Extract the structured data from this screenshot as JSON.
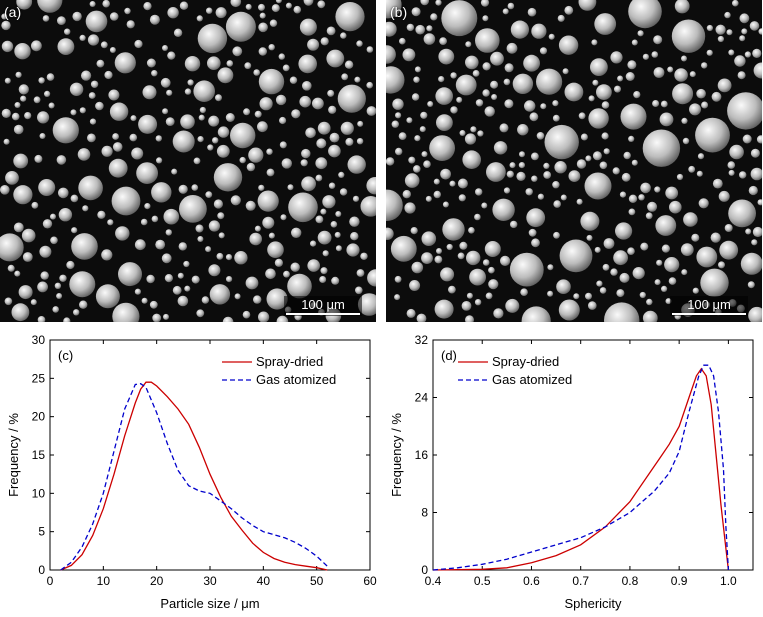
{
  "panels": {
    "a": {
      "label": "(a)",
      "scale_bar": "100 μm"
    },
    "b": {
      "label": "(b)",
      "scale_bar": "100 μm"
    }
  },
  "colors": {
    "spray_dried": "#cc0000",
    "gas_atomized": "#0000cc"
  },
  "chart_data": [
    {
      "type": "line",
      "panel_label": "(c)",
      "xlabel": "Particle size / μm",
      "ylabel": "Frequency / %",
      "xlim": [
        0,
        60
      ],
      "ylim": [
        0,
        30
      ],
      "xticks": [
        0,
        10,
        20,
        30,
        40,
        50,
        60
      ],
      "yticks": [
        0,
        5,
        10,
        15,
        20,
        25,
        30
      ],
      "legend": "top-right",
      "series": [
        {
          "name": "Spray-dried",
          "style": "solid",
          "color": "#cc0000",
          "x": [
            2,
            4,
            6,
            8,
            10,
            12,
            14,
            16,
            17,
            18,
            19,
            20,
            22,
            24,
            26,
            28,
            30,
            32,
            34,
            36,
            38,
            40,
            42,
            44,
            46,
            48,
            50,
            52
          ],
          "y": [
            0,
            0.6,
            2,
            4.5,
            8,
            12.5,
            17.5,
            21.8,
            23.6,
            24.5,
            24.5,
            24,
            22.6,
            21,
            19,
            16,
            12.5,
            9.5,
            7,
            5.2,
            3.5,
            2.3,
            1.5,
            1,
            0.7,
            0.5,
            0.3,
            0
          ]
        },
        {
          "name": "Gas atomized",
          "style": "dashed",
          "color": "#0000cc",
          "x": [
            2,
            4,
            6,
            8,
            10,
            12,
            14,
            16,
            17,
            18,
            20,
            22,
            24,
            26,
            28,
            30,
            32,
            34,
            36,
            38,
            40,
            42,
            44,
            46,
            48,
            50,
            52
          ],
          "y": [
            0,
            1,
            3,
            6,
            10,
            15.5,
            21,
            24.2,
            24.3,
            23.8,
            20.5,
            16.5,
            13,
            11,
            10.3,
            10,
            9,
            8,
            6.8,
            5.8,
            5,
            4.6,
            4.2,
            3.6,
            2.8,
            1.8,
            0.5
          ]
        }
      ]
    },
    {
      "type": "line",
      "panel_label": "(d)",
      "xlabel": "Sphericity",
      "ylabel": "Frequency / %",
      "xlim": [
        0.4,
        1.05
      ],
      "ylim": [
        0,
        32
      ],
      "xticks": [
        0.4,
        0.5,
        0.6,
        0.7,
        0.8,
        0.9,
        1.0
      ],
      "xtick_labels": [
        "0.4",
        "0.5",
        "0.6",
        "0.7",
        "0.8",
        "0.9",
        "1.0"
      ],
      "yticks": [
        0,
        8,
        16,
        24,
        32
      ],
      "legend": "top-left",
      "series": [
        {
          "name": "Spray-dried",
          "style": "solid",
          "color": "#cc0000",
          "x": [
            0.4,
            0.5,
            0.55,
            0.6,
            0.65,
            0.7,
            0.75,
            0.8,
            0.84,
            0.86,
            0.88,
            0.9,
            0.92,
            0.935,
            0.945,
            0.955,
            0.965,
            0.975,
            0.985,
            0.995,
            1.0
          ],
          "y": [
            0,
            0.1,
            0.3,
            1,
            2,
            3.5,
            6,
            9.5,
            13.5,
            15.5,
            17.5,
            20,
            24,
            27,
            28,
            27,
            23,
            16,
            9,
            3,
            0
          ]
        },
        {
          "name": "Gas atomized",
          "style": "dashed",
          "color": "#0000cc",
          "x": [
            0.4,
            0.45,
            0.5,
            0.55,
            0.6,
            0.65,
            0.7,
            0.75,
            0.8,
            0.85,
            0.88,
            0.9,
            0.92,
            0.94,
            0.95,
            0.96,
            0.97,
            0.98,
            0.99,
            0.995,
            1.0
          ],
          "y": [
            0,
            0.3,
            0.8,
            1.5,
            2.5,
            3.5,
            4.5,
            6,
            8,
            11,
            13.5,
            16.5,
            22,
            27,
            28.5,
            28.5,
            27,
            22,
            14,
            6,
            0
          ]
        }
      ]
    }
  ]
}
